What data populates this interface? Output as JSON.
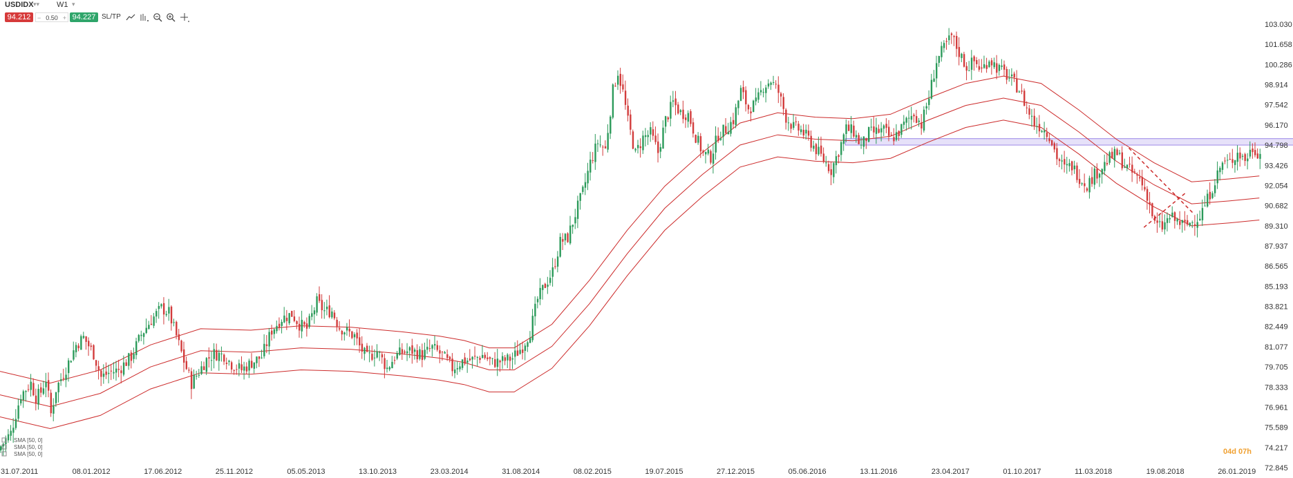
{
  "toolbar": {
    "symbol": "USDIDX",
    "timeframe": "W1",
    "sell_price": "94.212",
    "lot": "0.50",
    "buy_price": "94.227",
    "sltp_label": "SL/TP",
    "tools": [
      "line-chart-icon",
      "indicators-icon",
      "zoom-out-icon",
      "zoom-in-icon",
      "crosshair-icon"
    ]
  },
  "colors": {
    "up": "#2b9a5a",
    "down": "#d23b3b",
    "sma": "#cc2a2a",
    "zone": "#b8a8ee",
    "countdown": "#f0a030"
  },
  "legend": [
    "SMA [50, 0]",
    "SMA [50, 0]",
    "SMA [50, 0]"
  ],
  "countdown": {
    "days": "04d",
    "hours": "07h"
  },
  "chart_data": {
    "type": "candlestick",
    "symbol": "USDIDX",
    "timeframe": "W1",
    "y_ticks": [
      "103.030",
      "101.658",
      "100.286",
      "98.914",
      "97.542",
      "96.170",
      "94.798",
      "93.426",
      "92.054",
      "90.682",
      "89.310",
      "87.937",
      "86.565",
      "85.193",
      "83.821",
      "82.449",
      "81.077",
      "79.705",
      "78.333",
      "76.961",
      "75.589",
      "74.217",
      "72.845"
    ],
    "ylim": [
      72.845,
      103.03
    ],
    "x_ticks": [
      "31.07.2011",
      "08.01.2012",
      "17.06.2012",
      "25.11.2012",
      "05.05.2013",
      "13.10.2013",
      "23.03.2014",
      "31.08.2014",
      "08.02.2015",
      "19.07.2015",
      "27.12.2015",
      "05.06.2016",
      "13.11.2016",
      "23.04.2017",
      "01.10.2017",
      "11.03.2018",
      "19.08.2018",
      "26.01.2019"
    ],
    "close_path": [
      [
        0,
        74.3
      ],
      [
        4,
        75.2
      ],
      [
        8,
        77.8
      ],
      [
        12,
        78.6
      ],
      [
        14,
        77.6
      ],
      [
        16,
        78.0
      ],
      [
        18,
        78.9
      ],
      [
        20,
        76.5
      ],
      [
        22,
        78.2
      ],
      [
        26,
        79.6
      ],
      [
        30,
        81.2
      ],
      [
        33,
        81.7
      ],
      [
        37,
        80.6
      ],
      [
        40,
        79.0
      ],
      [
        43,
        79.3
      ],
      [
        47,
        79.5
      ],
      [
        52,
        80.4
      ],
      [
        56,
        81.9
      ],
      [
        60,
        82.9
      ],
      [
        64,
        83.7
      ],
      [
        67,
        83.4
      ],
      [
        70,
        81.8
      ],
      [
        73,
        80.1
      ],
      [
        76,
        78.6
      ],
      [
        79,
        79.4
      ],
      [
        82,
        80.2
      ],
      [
        85,
        80.6
      ],
      [
        89,
        80.5
      ],
      [
        92,
        79.9
      ],
      [
        96,
        79.5
      ],
      [
        100,
        80.0
      ],
      [
        104,
        80.4
      ],
      [
        108,
        82.2
      ],
      [
        112,
        83.0
      ],
      [
        116,
        83.3
      ],
      [
        119,
        82.6
      ],
      [
        122,
        82.3
      ],
      [
        126,
        84.1
      ],
      [
        129,
        83.5
      ],
      [
        132,
        83.5
      ],
      [
        135,
        82.4
      ],
      [
        138,
        82.1
      ],
      [
        141,
        81.8
      ],
      [
        143,
        81.1
      ],
      [
        146,
        80.3
      ],
      [
        150,
        80.8
      ],
      [
        154,
        79.6
      ],
      [
        157,
        80.4
      ],
      [
        160,
        80.7
      ],
      [
        164,
        80.8
      ],
      [
        168,
        80.5
      ],
      [
        172,
        81.0
      ],
      [
        176,
        80.5
      ],
      [
        180,
        79.6
      ],
      [
        184,
        80.1
      ],
      [
        188,
        80.2
      ],
      [
        192,
        80.5
      ],
      [
        196,
        80.0
      ],
      [
        200,
        80.1
      ],
      [
        204,
        80.3
      ],
      [
        208,
        81.1
      ],
      [
        211,
        82.1
      ],
      [
        214,
        84.3
      ],
      [
        217,
        85.3
      ],
      [
        220,
        86.2
      ],
      [
        223,
        88.2
      ],
      [
        226,
        88.5
      ],
      [
        229,
        90.1
      ],
      [
        232,
        91.6
      ],
      [
        235,
        93.6
      ],
      [
        238,
        95.0
      ],
      [
        241,
        94.5
      ],
      [
        244,
        98.5
      ],
      [
        246,
        99.8
      ],
      [
        248,
        98.4
      ],
      [
        250,
        96.4
      ],
      [
        253,
        94.2
      ],
      [
        256,
        95.3
      ],
      [
        259,
        95.6
      ],
      [
        262,
        94.3
      ],
      [
        265,
        96.5
      ],
      [
        268,
        97.7
      ],
      [
        271,
        97.0
      ],
      [
        274,
        96.9
      ],
      [
        277,
        95.4
      ],
      [
        280,
        94.2
      ],
      [
        283,
        94.0
      ],
      [
        286,
        95.5
      ],
      [
        289,
        95.9
      ],
      [
        292,
        96.5
      ],
      [
        295,
        98.5
      ],
      [
        298,
        97.3
      ],
      [
        301,
        97.6
      ],
      [
        304,
        98.8
      ],
      [
        307,
        99.2
      ],
      [
        310,
        98.4
      ],
      [
        313,
        96.7
      ],
      [
        316,
        96.0
      ],
      [
        319,
        95.8
      ],
      [
        322,
        95.2
      ],
      [
        325,
        94.5
      ],
      [
        328,
        93.8
      ],
      [
        331,
        93.1
      ],
      [
        334,
        94.4
      ],
      [
        337,
        95.9
      ],
      [
        340,
        95.7
      ],
      [
        343,
        94.7
      ],
      [
        346,
        95.6
      ],
      [
        349,
        95.7
      ],
      [
        352,
        95.8
      ],
      [
        355,
        95.2
      ],
      [
        358,
        95.7
      ],
      [
        361,
        96.4
      ],
      [
        364,
        97.0
      ],
      [
        367,
        96.2
      ],
      [
        370,
        98.1
      ],
      [
        373,
        100.5
      ],
      [
        376,
        101.4
      ],
      [
        379,
        102.2
      ],
      [
        382,
        101.1
      ],
      [
        385,
        100.1
      ],
      [
        388,
        100.5
      ],
      [
        391,
        99.9
      ],
      [
        394,
        100.7
      ],
      [
        397,
        100.1
      ],
      [
        400,
        99.7
      ],
      [
        403,
        99.2
      ],
      [
        406,
        98.6
      ],
      [
        409,
        97.3
      ],
      [
        412,
        96.3
      ],
      [
        415,
        96.0
      ],
      [
        418,
        95.5
      ],
      [
        421,
        94.0
      ],
      [
        424,
        93.2
      ],
      [
        427,
        93.4
      ],
      [
        430,
        92.6
      ],
      [
        433,
        92.1
      ],
      [
        436,
        92.8
      ],
      [
        439,
        93.3
      ],
      [
        442,
        93.9
      ],
      [
        445,
        94.2
      ],
      [
        448,
        93.4
      ],
      [
        451,
        92.9
      ],
      [
        454,
        92.5
      ],
      [
        457,
        91.4
      ],
      [
        460,
        89.4
      ],
      [
        463,
        89.2
      ],
      [
        466,
        89.9
      ],
      [
        469,
        89.6
      ],
      [
        472,
        89.3
      ],
      [
        475,
        89.6
      ],
      [
        478,
        90.0
      ],
      [
        481,
        91.1
      ],
      [
        484,
        92.4
      ],
      [
        487,
        93.6
      ],
      [
        490,
        93.6
      ],
      [
        493,
        94.3
      ],
      [
        496,
        93.8
      ],
      [
        499,
        94.6
      ],
      [
        502,
        94.2
      ]
    ],
    "sma_lines": [
      {
        "name": "SMA [50, 0]",
        "values": [
          [
            0,
            79.4
          ],
          [
            20,
            78.6
          ],
          [
            40,
            79.5
          ],
          [
            60,
            81.2
          ],
          [
            80,
            82.3
          ],
          [
            100,
            82.2
          ],
          [
            120,
            82.5
          ],
          [
            140,
            82.4
          ],
          [
            160,
            82.1
          ],
          [
            175,
            81.8
          ],
          [
            185,
            81.5
          ],
          [
            195,
            81.0
          ],
          [
            205,
            81.0
          ],
          [
            220,
            82.6
          ],
          [
            235,
            85.6
          ],
          [
            250,
            89.0
          ],
          [
            265,
            92.0
          ],
          [
            280,
            94.3
          ],
          [
            295,
            96.3
          ],
          [
            310,
            97.0
          ],
          [
            325,
            96.7
          ],
          [
            340,
            96.6
          ],
          [
            355,
            96.9
          ],
          [
            370,
            98.0
          ],
          [
            385,
            99.0
          ],
          [
            400,
            99.5
          ],
          [
            415,
            99.0
          ],
          [
            430,
            97.2
          ],
          [
            445,
            95.2
          ],
          [
            460,
            93.6
          ],
          [
            475,
            92.3
          ],
          [
            490,
            92.5
          ],
          [
            502,
            92.7
          ]
        ]
      },
      {
        "name": "SMA [50, 0]",
        "values": [
          [
            0,
            77.8
          ],
          [
            20,
            77.0
          ],
          [
            40,
            77.9
          ],
          [
            60,
            79.7
          ],
          [
            80,
            80.8
          ],
          [
            100,
            80.7
          ],
          [
            120,
            81.0
          ],
          [
            140,
            80.9
          ],
          [
            160,
            80.6
          ],
          [
            175,
            80.3
          ],
          [
            185,
            80.0
          ],
          [
            195,
            79.5
          ],
          [
            205,
            79.5
          ],
          [
            220,
            81.1
          ],
          [
            235,
            84.0
          ],
          [
            250,
            87.4
          ],
          [
            265,
            90.5
          ],
          [
            280,
            92.8
          ],
          [
            295,
            94.8
          ],
          [
            310,
            95.5
          ],
          [
            325,
            95.2
          ],
          [
            340,
            95.1
          ],
          [
            355,
            95.4
          ],
          [
            370,
            96.5
          ],
          [
            385,
            97.5
          ],
          [
            400,
            98.0
          ],
          [
            415,
            97.5
          ],
          [
            430,
            95.7
          ],
          [
            445,
            93.7
          ],
          [
            460,
            92.1
          ],
          [
            475,
            90.8
          ],
          [
            490,
            91.0
          ],
          [
            502,
            91.2
          ]
        ]
      },
      {
        "name": "SMA [50, 0]",
        "values": [
          [
            0,
            76.3
          ],
          [
            20,
            75.5
          ],
          [
            40,
            76.4
          ],
          [
            60,
            78.2
          ],
          [
            80,
            79.3
          ],
          [
            100,
            79.2
          ],
          [
            120,
            79.5
          ],
          [
            140,
            79.4
          ],
          [
            160,
            79.1
          ],
          [
            175,
            78.8
          ],
          [
            185,
            78.5
          ],
          [
            195,
            78.0
          ],
          [
            205,
            78.0
          ],
          [
            220,
            79.6
          ],
          [
            235,
            82.5
          ],
          [
            250,
            85.9
          ],
          [
            265,
            89.0
          ],
          [
            280,
            91.3
          ],
          [
            295,
            93.3
          ],
          [
            310,
            94.0
          ],
          [
            325,
            93.7
          ],
          [
            340,
            93.6
          ],
          [
            355,
            93.9
          ],
          [
            370,
            95.0
          ],
          [
            385,
            96.0
          ],
          [
            400,
            96.5
          ],
          [
            415,
            96.0
          ],
          [
            430,
            94.2
          ],
          [
            445,
            92.2
          ],
          [
            460,
            90.6
          ],
          [
            475,
            89.3
          ],
          [
            490,
            89.5
          ],
          [
            502,
            89.7
          ]
        ]
      }
    ],
    "zone": {
      "x_start": 337,
      "x_end": 525,
      "y_top": 95.24,
      "y_bottom": 94.8
    },
    "trendlines": [
      {
        "style": "dashed",
        "points": [
          [
            450,
            94.6
          ],
          [
            476,
            90.1
          ]
        ]
      },
      {
        "style": "dashed",
        "points": [
          [
            456,
            89.2
          ],
          [
            473,
            91.6
          ]
        ]
      }
    ],
    "last_price": 94.212
  }
}
